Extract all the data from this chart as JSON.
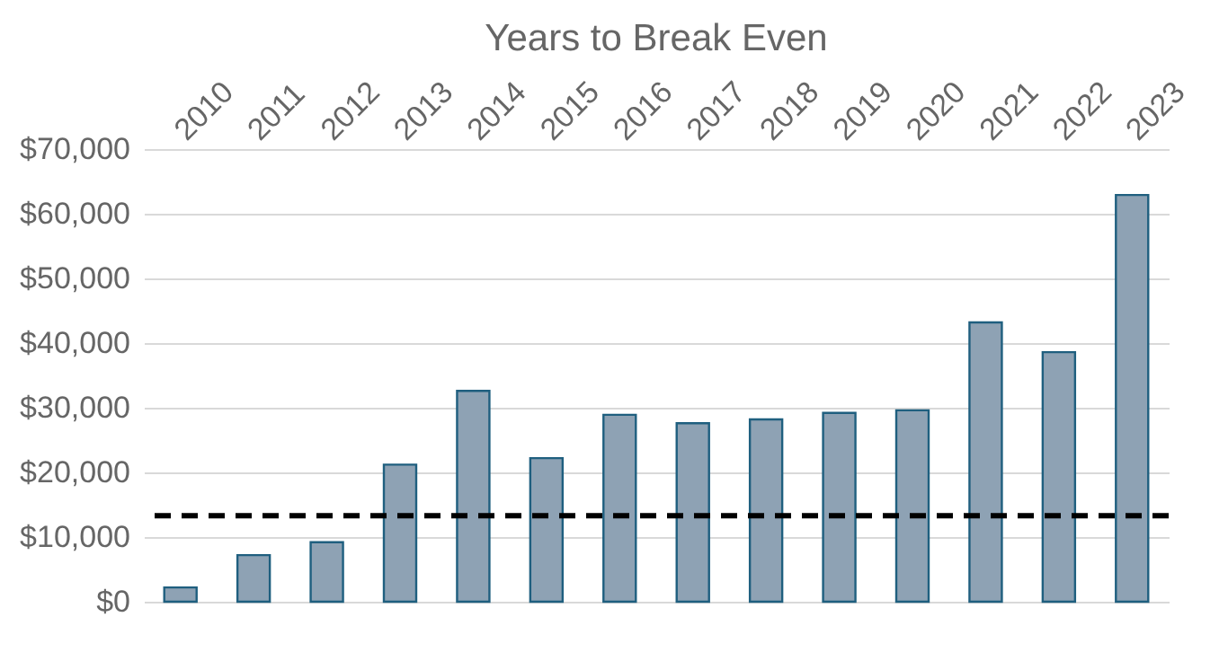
{
  "chart_data": {
    "type": "bar",
    "title": "Years to Break Even",
    "categories": [
      "2010",
      "2011",
      "2012",
      "2013",
      "2014",
      "2015",
      "2016",
      "2017",
      "2018",
      "2019",
      "2020",
      "2021",
      "2022",
      "2023"
    ],
    "values": [
      2200,
      7200,
      9200,
      21200,
      32600,
      22200,
      28900,
      27600,
      28200,
      29200,
      29600,
      43200,
      38600,
      62900
    ],
    "color": "#8ea2b4",
    "ylim": [
      0,
      70000
    ],
    "yticks": [
      {
        "value": 0,
        "label": "$0"
      },
      {
        "value": 10000,
        "label": "$10,000"
      },
      {
        "value": 20000,
        "label": "$20,000"
      },
      {
        "value": 30000,
        "label": "$30,000"
      },
      {
        "value": 40000,
        "label": "$40,000"
      },
      {
        "value": 50000,
        "label": "$50,000"
      },
      {
        "value": 60000,
        "label": "$60,000"
      },
      {
        "value": 70000,
        "label": "$70,000"
      }
    ],
    "grid": "y",
    "ref_lines": [
      {
        "axis": "y",
        "value": 13300,
        "label": null,
        "color": "#000000",
        "line_style": "dashed"
      }
    ]
  }
}
